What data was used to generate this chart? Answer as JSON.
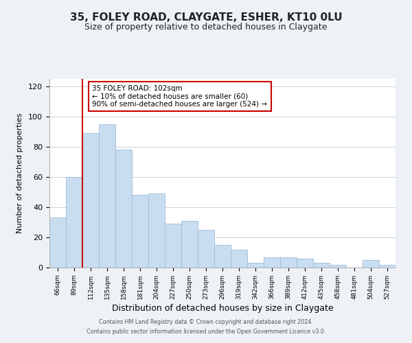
{
  "title": "35, FOLEY ROAD, CLAYGATE, ESHER, KT10 0LU",
  "subtitle": "Size of property relative to detached houses in Claygate",
  "xlabel": "Distribution of detached houses by size in Claygate",
  "ylabel": "Number of detached properties",
  "categories": [
    "66sqm",
    "89sqm",
    "112sqm",
    "135sqm",
    "158sqm",
    "181sqm",
    "204sqm",
    "227sqm",
    "250sqm",
    "273sqm",
    "296sqm",
    "319sqm",
    "342sqm",
    "366sqm",
    "389sqm",
    "412sqm",
    "435sqm",
    "458sqm",
    "481sqm",
    "504sqm",
    "527sqm"
  ],
  "values": [
    33,
    60,
    89,
    95,
    78,
    48,
    49,
    29,
    31,
    25,
    15,
    12,
    3,
    7,
    7,
    6,
    3,
    2,
    0,
    5,
    2
  ],
  "bar_color": "#c8ddf0",
  "bar_edgecolor": "#a0bcd8",
  "vline_x_idx": 2,
  "vline_color": "#cc0000",
  "annotation_title": "35 FOLEY ROAD: 102sqm",
  "annotation_line1": "← 10% of detached houses are smaller (60)",
  "annotation_line2": "90% of semi-detached houses are larger (524) →",
  "annotation_box_edgecolor": "#cc0000",
  "ylim": [
    0,
    125
  ],
  "yticks": [
    0,
    20,
    40,
    60,
    80,
    100,
    120
  ],
  "footer1": "Contains HM Land Registry data © Crown copyright and database right 2024.",
  "footer2": "Contains public sector information licensed under the Open Government Licence v3.0.",
  "background_color": "#eef2f7",
  "plot_background": "#ffffff",
  "grid_color": "#c8d0dc"
}
